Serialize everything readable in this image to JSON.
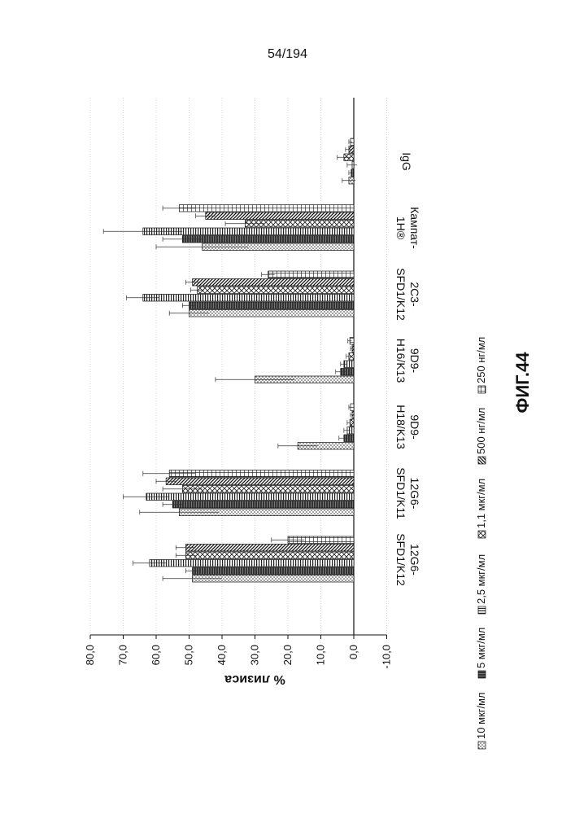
{
  "page": {
    "number": "54/194",
    "figure_label": "ФИГ.44"
  },
  "colors": {
    "ink": "#111111",
    "paper": "#ffffff",
    "grid": "#bbbbbb"
  },
  "chart_data": {
    "type": "bar",
    "orientation": "horizontal-rotated",
    "title": "",
    "xlabel": "",
    "ylabel": "% лизиса",
    "ylim": [
      -10,
      80
    ],
    "ticks": [
      "-10,0",
      "0,0",
      "10,0",
      "20,0",
      "30,0",
      "40,0",
      "50,0",
      "60,0",
      "70,0",
      "80,0"
    ],
    "grid": true,
    "legend_position": "bottom",
    "categories": [
      [
        "IgG"
      ],
      [
        "Кампат-",
        "1Н®"
      ],
      [
        "2С3-",
        "SFD1/K12"
      ],
      [
        "9D9-",
        "H16/K13"
      ],
      [
        "9D9-",
        "H18/K13"
      ],
      [
        "12G6-",
        "SFD1/K11"
      ],
      [
        "12G6-",
        "SFD1/K12"
      ]
    ],
    "series": [
      {
        "name": "10 мкг/мл",
        "pattern": "dots",
        "values": [
          1.5,
          46.0,
          50.0,
          30.0,
          17.0,
          53.0,
          49.0
        ]
      },
      {
        "name": "5 мкг/мл",
        "pattern": "solid",
        "values": [
          0.8,
          52.0,
          50.0,
          4.0,
          3.0,
          55.0,
          49.0
        ]
      },
      {
        "name": "2,5 мкг/мл",
        "pattern": "hlines",
        "values": [
          0.5,
          64.0,
          64.0,
          3.0,
          2.0,
          63.0,
          62.0
        ]
      },
      {
        "name": "1,1 мкг/мл",
        "pattern": "cross",
        "values": [
          3.0,
          33.0,
          47.5,
          1.5,
          1.2,
          52.0,
          51.0
        ]
      },
      {
        "name": "500 нг/мл",
        "pattern": "diag",
        "values": [
          1.5,
          45.0,
          49.0,
          0.5,
          0.5,
          57.0,
          51.0
        ]
      },
      {
        "name": "250 нг/мл",
        "pattern": "grid",
        "values": [
          1.0,
          53.0,
          26.0,
          1.2,
          1.0,
          56.0,
          20.0
        ]
      }
    ],
    "errors": [
      [
        2.0,
        14.0,
        6.0,
        12.0,
        6.0,
        12.0,
        9.0
      ],
      [
        0.7,
        6.0,
        2.0,
        1.5,
        1.5,
        3.0,
        2.0
      ],
      [
        1.5,
        12.0,
        5.0,
        1.0,
        1.0,
        7.0,
        5.0
      ],
      [
        2.0,
        6.0,
        2.0,
        0.8,
        0.8,
        6.0,
        3.0
      ],
      [
        1.0,
        3.0,
        2.0,
        0.5,
        0.5,
        3.0,
        3.0
      ],
      [
        0.5,
        5.0,
        2.0,
        0.6,
        0.5,
        8.0,
        5.0
      ]
    ]
  }
}
